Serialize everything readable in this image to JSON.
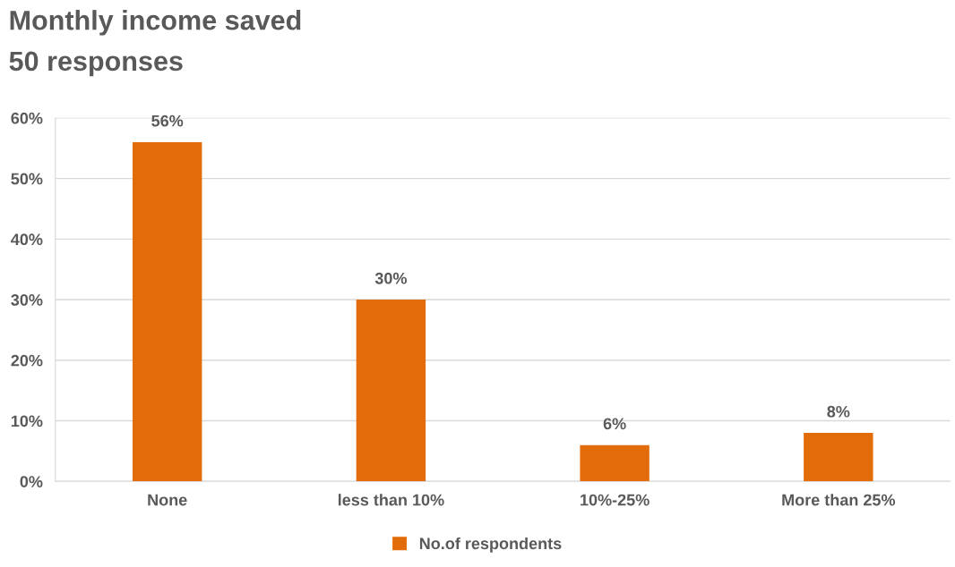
{
  "chart_data": {
    "type": "bar",
    "title": "Monthly income saved",
    "subtitle": "50 responses",
    "categories": [
      "None",
      "less than 10%",
      "10%-25%",
      "More than 25%"
    ],
    "series": [
      {
        "name": "No.of respondents",
        "color": "#e36c0a",
        "values": [
          56,
          30,
          6,
          8
        ],
        "value_labels": [
          "56%",
          "30%",
          "6%",
          "8%"
        ]
      }
    ],
    "ylim": [
      0,
      60
    ],
    "yticks": [
      {
        "value": 0,
        "label": "0%"
      },
      {
        "value": 10,
        "label": "10%"
      },
      {
        "value": 20,
        "label": "20%"
      },
      {
        "value": 30,
        "label": "30%"
      },
      {
        "value": 40,
        "label": "40%"
      },
      {
        "value": 50,
        "label": "50%"
      },
      {
        "value": 60,
        "label": "60%"
      }
    ],
    "grid": "y",
    "legend": "bottom"
  }
}
